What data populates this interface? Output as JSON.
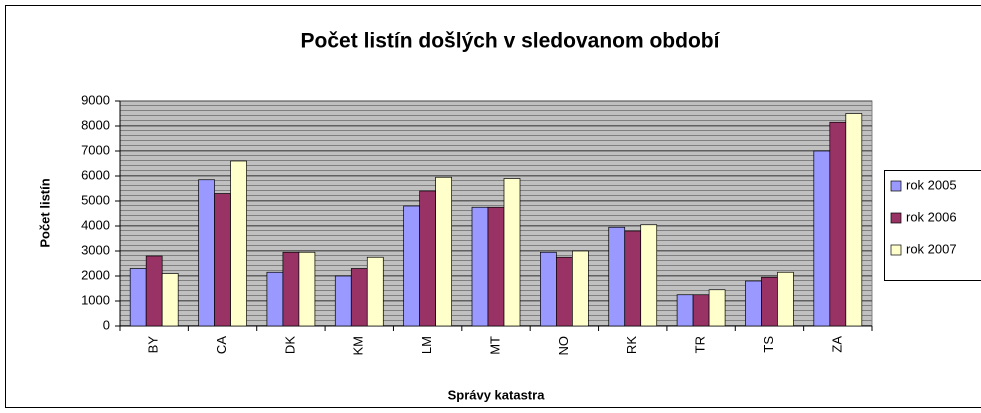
{
  "chart_data": {
    "type": "bar",
    "title": "Počet listín došlých v sledovanom období",
    "x_label": "Správy katastra",
    "y_label": "Počet listín",
    "categories": [
      "BY",
      "CA",
      "DK",
      "KM",
      "LM",
      "MT",
      "NO",
      "RK",
      "TR",
      "TS",
      "ZA"
    ],
    "series": [
      {
        "name": "rok 2005",
        "color": "#9999ff",
        "values": [
          2300,
          5850,
          2150,
          2000,
          4800,
          4750,
          2950,
          3950,
          1250,
          1800,
          7000
        ]
      },
      {
        "name": "rok 2006",
        "color": "#993366",
        "values": [
          2800,
          5300,
          2950,
          2300,
          5400,
          4750,
          2750,
          3800,
          1250,
          1950,
          8150
        ]
      },
      {
        "name": "rok 2007",
        "color": "#ffffcc",
        "values": [
          2100,
          6600,
          2950,
          2750,
          5950,
          5900,
          3000,
          4050,
          1450,
          2150,
          8500
        ]
      }
    ],
    "ylim": [
      0,
      9000
    ],
    "yticks": [
      0,
      1000,
      2000,
      3000,
      4000,
      5000,
      6000,
      7000,
      8000,
      9000
    ],
    "grid": true,
    "legend": "right"
  }
}
